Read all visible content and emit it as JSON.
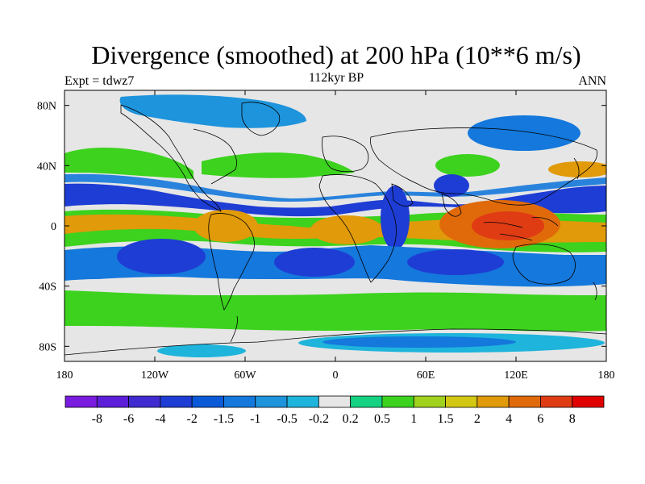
{
  "header": {
    "title": "Divergence (smoothed) at 200 hPa (10**6 m/s)",
    "subtitle": "112kyr BP",
    "left_label": "Expt = tdwz7",
    "right_label": "ANN"
  },
  "map": {
    "lon_range": [
      -180,
      180
    ],
    "lat_range": [
      -90,
      90
    ],
    "x_ticks": [
      {
        "value": -180,
        "label": "180"
      },
      {
        "value": -120,
        "label": "120W"
      },
      {
        "value": -60,
        "label": "60W"
      },
      {
        "value": 0,
        "label": "0"
      },
      {
        "value": 60,
        "label": "60E"
      },
      {
        "value": 120,
        "label": "120E"
      },
      {
        "value": 180,
        "label": "180"
      }
    ],
    "y_ticks": [
      {
        "value": 80,
        "label": "80N"
      },
      {
        "value": 40,
        "label": "40N"
      },
      {
        "value": 0,
        "label": "0"
      },
      {
        "value": -40,
        "label": "40S"
      },
      {
        "value": -80,
        "label": "80S"
      }
    ],
    "neutral_color": "#e6e6e6"
  },
  "colorbar": {
    "colors": [
      "#7a1be0",
      "#5c1ed8",
      "#3f2bd0",
      "#1e3dd4",
      "#0a5ad8",
      "#1478dc",
      "#1e94dc",
      "#1eb4dc",
      "#e6e6e6",
      "#14d282",
      "#3cd21e",
      "#a0d21e",
      "#d2c814",
      "#e09a0a",
      "#e06a0a",
      "#e03c14",
      "#e00000"
    ],
    "labels": [
      "-8",
      "-6",
      "-4",
      "-2",
      "-1.5",
      "-1",
      "-0.5",
      "-0.2",
      "0.2",
      "0.5",
      "1",
      "1.5",
      "2",
      "4",
      "6",
      "8"
    ]
  }
}
